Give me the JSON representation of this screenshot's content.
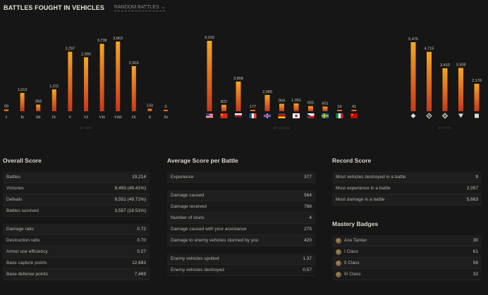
{
  "header": {
    "title": "BATTLES FOUGHT IN VEHICLES",
    "mode": "RANDOM BATTLES"
  },
  "chart_data": [
    {
      "type": "bar",
      "categories": [
        "I",
        "II",
        "III",
        "IV",
        "V",
        "VI",
        "VII",
        "VIII",
        "IX",
        "X",
        "XI"
      ],
      "values": [
        99,
        1012,
        368,
        1211,
        3297,
        2990,
        3738,
        3863,
        2503,
        133,
        0
      ],
      "value_labels": [
        "99",
        "1,012",
        "368",
        "1,211",
        "3,297",
        "2,990",
        "3,738",
        "3,863",
        "2,503",
        "133",
        "0"
      ],
      "xlabel": "BY TIER"
    },
    {
      "type": "bar",
      "categories": [
        "usa",
        "china",
        "czech-italy",
        "france",
        "uk",
        "germany",
        "japan",
        "czechoslovakia",
        "sweden",
        "poland",
        "ussr"
      ],
      "category_icons": [
        "flag-usa-icon",
        "flag-china-icon",
        "flag-czech-icon",
        "flag-france-icon",
        "flag-uk-icon",
        "flag-germany-icon",
        "flag-japan-icon",
        "flag-czechoslovakia-icon",
        "flag-sweden-icon",
        "flag-italy-icon",
        "flag-ussr-icon"
      ],
      "values": [
        9033,
        822,
        3808,
        177,
        2089,
        954,
        1001,
        655,
        601,
        33,
        41
      ],
      "value_labels": [
        "9,033",
        "822",
        "3,808",
        "177",
        "2,089",
        "954",
        "1,001",
        "655",
        "601",
        "33",
        "41"
      ],
      "xlabel": "BY NATION"
    },
    {
      "type": "bar",
      "categories": [
        "light",
        "medium",
        "heavy",
        "td",
        "spg"
      ],
      "category_icons": [
        "light-tank-icon",
        "medium-tank-icon",
        "heavy-tank-icon",
        "tank-destroyer-icon",
        "spg-icon"
      ],
      "values": [
        5475,
        4715,
        3410,
        3438,
        2176
      ],
      "value_labels": [
        "5,475",
        "4,715",
        "3,410",
        "3,438",
        "2,176"
      ],
      "xlabel": "BY TYPE"
    }
  ],
  "overall": {
    "title": "Overall Score",
    "rows1": [
      {
        "label": "Battles",
        "value": "19,214"
      },
      {
        "label": "Victories",
        "value": "9,493 (49.41%)"
      },
      {
        "label": "Defeats",
        "value": "9,551 (49.71%)"
      },
      {
        "label": "Battles survived",
        "value": "3,557 (18.51%)"
      }
    ],
    "rows2": [
      {
        "label": "Damage ratio",
        "value": "0.72"
      },
      {
        "label": "Destruction ratio",
        "value": "0.70"
      },
      {
        "label": "Armor use efficiency",
        "value": "0.27"
      },
      {
        "label": "Base capture points",
        "value": "12,683"
      },
      {
        "label": "Base defense points",
        "value": "7,469"
      }
    ]
  },
  "average": {
    "title": "Average Score per Battle",
    "rows1": [
      {
        "label": "Experience",
        "value": "377"
      }
    ],
    "rows2": [
      {
        "label": "Damage caused",
        "value": "564"
      },
      {
        "label": "Damage received",
        "value": "788"
      },
      {
        "label": "Number of stuns",
        "value": "4"
      },
      {
        "label": "Damage caused with your assistance",
        "value": "275"
      },
      {
        "label": "Damage to enemy vehicles stunned by you",
        "value": "420"
      }
    ],
    "rows3": [
      {
        "label": "Enemy vehicles spotted",
        "value": "1.37"
      },
      {
        "label": "Enemy vehicles destroyed",
        "value": "0.57"
      }
    ]
  },
  "record": {
    "title": "Record Score",
    "rows": [
      {
        "label": "Most vehicles destroyed in a battle",
        "value": "9"
      },
      {
        "label": "Most experience in a battle",
        "value": "2,057"
      },
      {
        "label": "Most damage in a battle",
        "value": "5,663"
      }
    ]
  },
  "mastery": {
    "title": "Mastery Badges",
    "rows": [
      {
        "label": "Ace Tanker",
        "value": "30",
        "icon": "ace-tanker-badge-icon"
      },
      {
        "label": "I Class",
        "value": "61",
        "icon": "first-class-badge-icon"
      },
      {
        "label": "II Class",
        "value": "56",
        "icon": "second-class-badge-icon"
      },
      {
        "label": "III Class",
        "value": "32",
        "icon": "third-class-badge-icon"
      }
    ]
  },
  "colors": {
    "bar_top": "#f5a623",
    "bar_bottom": "#c8381a",
    "accent_text": "#ddd7c9"
  }
}
